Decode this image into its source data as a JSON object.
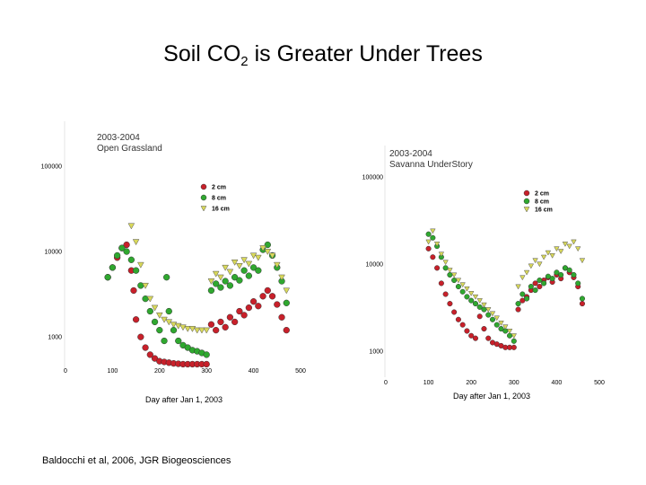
{
  "slide": {
    "title_prefix": "Soil CO",
    "title_sub": "2",
    "title_suffix": " is Greater Under Trees",
    "citation": "Baldocchi et al, 2006, JGR Biogeosciences"
  },
  "colors": {
    "2 cm": "#c8202a",
    "8 cm": "#2fa82f",
    "16 cm": "#d8d85a"
  },
  "chart_data": [
    {
      "type": "scatter",
      "title": "2003-2004",
      "subtitle": "Open Grassland",
      "xlabel": "Day after Jan 1, 2003",
      "ylabel": "",
      "xlim": [
        0,
        500
      ],
      "ylim": [
        400,
        100000
      ],
      "yscale": "log",
      "xticks": [
        0,
        100,
        200,
        300,
        400,
        500
      ],
      "yticks": [
        1000,
        10000,
        100000
      ],
      "ytick_labels": [
        "1000",
        "10000",
        "100000"
      ],
      "legend": "top-right",
      "series": [
        {
          "name": "2 cm",
          "marker": "circle",
          "x": [
            90,
            100,
            110,
            120,
            130,
            140,
            145,
            150,
            160,
            170,
            180,
            190,
            200,
            210,
            220,
            230,
            240,
            250,
            260,
            270,
            280,
            290,
            300,
            310,
            320,
            330,
            340,
            350,
            360,
            370,
            380,
            390,
            400,
            410,
            420,
            430,
            440,
            450,
            460,
            470
          ],
          "y": [
            5000,
            6500,
            8500,
            11000,
            12000,
            6000,
            3500,
            1600,
            1000,
            750,
            620,
            560,
            520,
            510,
            500,
            490,
            485,
            480,
            480,
            480,
            480,
            480,
            480,
            1400,
            1200,
            1500,
            1300,
            1700,
            1500,
            2000,
            1800,
            2200,
            2600,
            2300,
            3000,
            3500,
            3000,
            2400,
            1700,
            1200
          ]
        },
        {
          "name": "8 cm",
          "marker": "circle",
          "x": [
            90,
            100,
            110,
            120,
            130,
            140,
            150,
            160,
            170,
            180,
            190,
            200,
            210,
            215,
            220,
            230,
            240,
            250,
            260,
            270,
            280,
            290,
            300,
            310,
            320,
            330,
            340,
            350,
            360,
            370,
            380,
            390,
            400,
            410,
            420,
            430,
            440,
            450,
            460,
            470
          ],
          "y": [
            5000,
            6500,
            9000,
            11000,
            10000,
            8000,
            6000,
            4000,
            2800,
            2000,
            1500,
            1200,
            900,
            5000,
            2000,
            1200,
            900,
            800,
            750,
            700,
            680,
            650,
            620,
            3500,
            4200,
            3800,
            4500,
            4000,
            5000,
            4600,
            6000,
            5200,
            6500,
            6000,
            10500,
            12000,
            9000,
            6500,
            4500,
            2500
          ]
        },
        {
          "name": "16 cm",
          "marker": "triangle",
          "x": [
            140,
            150,
            160,
            170,
            180,
            190,
            200,
            210,
            220,
            230,
            240,
            250,
            260,
            270,
            280,
            290,
            300,
            310,
            320,
            330,
            340,
            350,
            360,
            370,
            380,
            390,
            400,
            410,
            420,
            430,
            440,
            450,
            460,
            470
          ],
          "y": [
            20000,
            13000,
            7000,
            4000,
            2800,
            2200,
            1800,
            1600,
            1500,
            1400,
            1350,
            1300,
            1250,
            1250,
            1200,
            1200,
            1200,
            4500,
            5500,
            5000,
            6500,
            5800,
            7500,
            6800,
            8000,
            7200,
            9000,
            8500,
            11000,
            10000,
            9000,
            7000,
            5000,
            3500
          ]
        }
      ]
    },
    {
      "type": "scatter",
      "title": "2003-2004",
      "subtitle": "Savanna UnderStory",
      "xlabel": "Day after Jan 1, 2003",
      "ylabel": "",
      "xlim": [
        0,
        500
      ],
      "ylim": [
        500,
        100000
      ],
      "yscale": "log",
      "xticks": [
        0,
        100,
        200,
        300,
        400,
        500
      ],
      "yticks": [
        1000,
        10000,
        100000
      ],
      "ytick_labels": [
        "1000",
        "10000",
        "100000"
      ],
      "legend": "top-right",
      "series": [
        {
          "name": "2 cm",
          "marker": "circle",
          "x": [
            100,
            110,
            120,
            130,
            140,
            150,
            160,
            170,
            180,
            190,
            200,
            210,
            220,
            230,
            240,
            250,
            260,
            270,
            280,
            290,
            300,
            310,
            320,
            330,
            340,
            350,
            360,
            370,
            380,
            390,
            400,
            410,
            420,
            430,
            440,
            450,
            460
          ],
          "y": [
            15000,
            12000,
            9000,
            6000,
            4500,
            3500,
            2800,
            2300,
            2000,
            1700,
            1500,
            1400,
            2500,
            1800,
            1400,
            1250,
            1200,
            1150,
            1100,
            1100,
            1100,
            3000,
            3800,
            4200,
            5000,
            6000,
            5500,
            6500,
            7000,
            6200,
            7500,
            6800,
            9000,
            8000,
            7000,
            5500,
            3500
          ]
        },
        {
          "name": "8 cm",
          "marker": "circle",
          "x": [
            100,
            110,
            120,
            130,
            140,
            150,
            160,
            170,
            180,
            190,
            200,
            210,
            220,
            230,
            240,
            250,
            260,
            270,
            280,
            290,
            300,
            310,
            320,
            330,
            340,
            350,
            360,
            370,
            380,
            390,
            400,
            410,
            420,
            430,
            440,
            450,
            460
          ],
          "y": [
            22000,
            20000,
            16000,
            12000,
            9000,
            7500,
            6500,
            5500,
            4800,
            4200,
            3800,
            3500,
            3200,
            3000,
            2600,
            2300,
            2000,
            1800,
            1700,
            1500,
            1300,
            3500,
            4500,
            4000,
            5500,
            5000,
            6500,
            6000,
            7200,
            6800,
            8000,
            7500,
            9000,
            8500,
            7500,
            6000,
            4000
          ]
        },
        {
          "name": "16 cm",
          "marker": "triangle",
          "x": [
            100,
            110,
            120,
            130,
            140,
            150,
            160,
            170,
            180,
            190,
            200,
            210,
            220,
            230,
            240,
            250,
            260,
            270,
            280,
            290,
            300,
            310,
            320,
            330,
            340,
            350,
            360,
            370,
            380,
            390,
            400,
            410,
            420,
            430,
            440,
            450,
            460
          ],
          "y": [
            18000,
            24000,
            17000,
            13000,
            10500,
            8500,
            7500,
            6500,
            5800,
            5200,
            4600,
            4200,
            3800,
            3400,
            3000,
            2700,
            2400,
            2100,
            1900,
            1700,
            1500,
            5500,
            7000,
            8000,
            9500,
            11000,
            10000,
            12000,
            13500,
            12500,
            15000,
            14000,
            17000,
            16000,
            18000,
            15000,
            11000
          ]
        }
      ]
    }
  ]
}
